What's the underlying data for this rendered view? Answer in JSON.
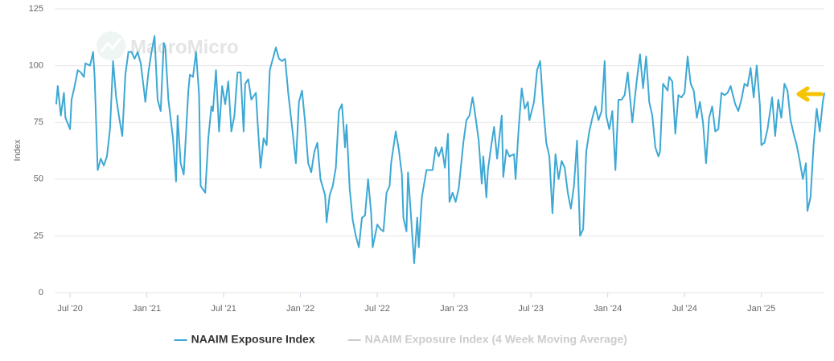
{
  "chart_data": {
    "type": "line",
    "watermark": "MacroMicro",
    "y_label": "Index",
    "xlim": [
      2020.4,
      2025.41
    ],
    "xticks": [
      {
        "value": 2020.5,
        "label": "Jul '20"
      },
      {
        "value": 2021.0,
        "label": "Jan '21"
      },
      {
        "value": 2021.5,
        "label": "Jul '21"
      },
      {
        "value": 2022.0,
        "label": "Jan '22"
      },
      {
        "value": 2022.5,
        "label": "Jul '22"
      },
      {
        "value": 2023.0,
        "label": "Jan '23"
      },
      {
        "value": 2023.5,
        "label": "Jul '23"
      },
      {
        "value": 2024.0,
        "label": "Jan '24"
      },
      {
        "value": 2024.5,
        "label": "Jul '24"
      },
      {
        "value": 2025.0,
        "label": "Jan '25"
      }
    ],
    "ylim": [
      0,
      125
    ],
    "yticks": [
      0,
      25,
      50,
      75,
      100,
      125
    ],
    "grid": true,
    "x": [
      2020.41,
      2020.42,
      2020.44,
      2020.46,
      2020.47,
      2020.5,
      2020.51,
      2020.53,
      2020.55,
      2020.57,
      2020.59,
      2020.6,
      2020.63,
      2020.65,
      2020.66,
      2020.68,
      2020.7,
      2020.72,
      2020.74,
      2020.76,
      2020.78,
      2020.8,
      2020.82,
      2020.84,
      2020.86,
      2020.88,
      2020.9,
      2020.92,
      2020.94,
      2020.96,
      2020.98,
      2020.99,
      2021.01,
      2021.03,
      2021.05,
      2021.07,
      2021.09,
      2021.11,
      2021.12,
      2021.14,
      2021.17,
      2021.19,
      2021.2,
      2021.22,
      2021.24,
      2021.27,
      2021.28,
      2021.3,
      2021.32,
      2021.34,
      2021.35,
      2021.38,
      2021.4,
      2021.42,
      2021.43,
      2021.45,
      2021.47,
      2021.49,
      2021.51,
      2021.53,
      2021.55,
      2021.57,
      2021.59,
      2021.61,
      2021.63,
      2021.64,
      2021.66,
      2021.68,
      2021.71,
      2021.72,
      2021.74,
      2021.76,
      2021.78,
      2021.8,
      2021.82,
      2021.84,
      2021.86,
      2021.88,
      2021.9,
      2021.92,
      2021.95,
      2021.97,
      2021.99,
      2022.01,
      2022.03,
      2022.05,
      2022.07,
      2022.09,
      2022.11,
      2022.13,
      2022.16,
      2022.17,
      2022.19,
      2022.21,
      2022.23,
      2022.25,
      2022.27,
      2022.29,
      2022.3,
      2022.32,
      2022.34,
      2022.36,
      2022.38,
      2022.4,
      2022.42,
      2022.44,
      2022.46,
      2022.47,
      2022.5,
      2022.52,
      2022.54,
      2022.56,
      2022.58,
      2022.59,
      2022.62,
      2022.64,
      2022.66,
      2022.67,
      2022.69,
      2022.7,
      2022.72,
      2022.74,
      2022.76,
      2022.77,
      2022.79,
      2022.82,
      2022.84,
      2022.86,
      2022.88,
      2022.9,
      2022.92,
      2022.94,
      2022.96,
      2022.97,
      2022.99,
      2023.01,
      2023.03,
      2023.06,
      2023.08,
      2023.1,
      2023.12,
      2023.13,
      2023.16,
      2023.18,
      2023.19,
      2023.21,
      2023.22,
      2023.24,
      2023.26,
      2023.28,
      2023.31,
      2023.32,
      2023.34,
      2023.36,
      2023.39,
      2023.4,
      2023.42,
      2023.44,
      2023.46,
      2023.48,
      2023.49,
      2023.52,
      2023.54,
      2023.56,
      2023.58,
      2023.6,
      2023.62,
      2023.64,
      2023.66,
      2023.68,
      2023.7,
      2023.72,
      2023.74,
      2023.76,
      2023.78,
      2023.8,
      2023.82,
      2023.84,
      2023.86,
      2023.88,
      2023.9,
      2023.92,
      2023.94,
      2023.96,
      2023.98,
      2023.99,
      2024.01,
      2024.03,
      2024.05,
      2024.07,
      2024.09,
      2024.11,
      2024.13,
      2024.16,
      2024.18,
      2024.19,
      2024.21,
      2024.23,
      2024.25,
      2024.27,
      2024.29,
      2024.31,
      2024.33,
      2024.34,
      2024.36,
      2024.39,
      2024.4,
      2024.42,
      2024.44,
      2024.46,
      2024.48,
      2024.5,
      2024.52,
      2024.54,
      2024.56,
      2024.58,
      2024.6,
      2024.62,
      2024.64,
      2024.66,
      2024.68,
      2024.7,
      2024.72,
      2024.74,
      2024.76,
      2024.78,
      2024.8,
      2024.83,
      2024.85,
      2024.87,
      2024.89,
      2024.91,
      2024.93,
      2024.95,
      2024.97,
      2024.99,
      2025.0,
      2025.02,
      2025.04,
      2025.07,
      2025.09,
      2025.11,
      2025.13,
      2025.15,
      2025.17,
      2025.19,
      2025.21,
      2025.23,
      2025.25,
      2025.27,
      2025.29,
      2025.3,
      2025.32,
      2025.34,
      2025.36,
      2025.38,
      2025.4,
      2025.41
    ],
    "series": [
      {
        "name": "NAAIM Exposure Index",
        "color": "#3da8d4",
        "visible": true,
        "values": [
          83,
          91,
          78,
          88,
          77,
          72,
          85,
          91,
          98,
          97,
          95,
          101,
          100,
          106,
          95,
          54,
          59,
          56,
          60,
          72,
          102,
          86,
          77,
          69,
          96,
          106,
          106,
          103,
          106,
          101,
          90,
          84,
          97,
          106,
          113,
          85,
          80,
          110,
          108,
          85,
          68,
          49,
          78,
          57,
          52,
          89,
          96,
          95,
          106,
          87,
          47,
          44,
          68,
          82,
          80,
          98,
          71,
          91,
          83,
          93,
          71,
          78,
          97,
          97,
          71,
          92,
          94,
          85,
          88,
          76,
          55,
          68,
          65,
          98,
          103,
          108,
          103,
          102,
          103,
          88,
          70,
          57,
          84,
          89,
          75,
          57,
          53,
          62,
          66,
          50,
          43,
          31,
          43,
          47,
          55,
          80,
          83,
          64,
          74,
          46,
          32,
          25,
          20,
          33,
          34,
          50,
          35,
          20,
          30,
          28,
          27,
          44,
          47,
          57,
          71,
          63,
          52,
          33,
          27,
          53,
          33,
          13,
          33,
          20,
          42,
          54,
          54,
          54,
          64,
          60,
          64,
          55,
          70,
          40,
          44,
          40,
          46,
          66,
          76,
          78,
          86,
          82,
          67,
          48,
          60,
          42,
          54,
          64,
          73,
          59,
          78,
          51,
          63,
          60,
          61,
          50,
          72,
          90,
          81,
          84,
          76,
          84,
          98,
          102,
          82,
          66,
          60,
          35,
          61,
          50,
          58,
          55,
          44,
          37,
          47,
          67,
          25,
          28,
          62,
          71,
          77,
          82,
          76,
          80,
          102,
          78,
          72,
          80,
          54,
          85,
          85,
          87,
          97,
          75,
          88,
          94,
          105,
          90,
          104,
          84,
          78,
          64,
          60,
          62,
          92,
          89,
          95,
          93,
          70,
          87,
          86,
          88,
          104,
          92,
          89,
          77,
          84,
          75,
          57,
          77,
          82,
          71,
          72,
          88,
          87,
          88,
          91,
          83,
          80,
          85,
          92,
          91,
          99,
          86,
          100,
          83,
          65,
          66,
          72,
          86,
          69,
          85,
          77,
          92,
          89,
          76,
          70,
          65,
          58,
          50,
          57,
          36,
          42,
          65,
          81,
          71,
          84,
          88
        ]
      },
      {
        "name": "NAAIM Exposure Index (4 Week Moving Average)",
        "color": "#cccccc",
        "visible": false
      }
    ]
  }
}
